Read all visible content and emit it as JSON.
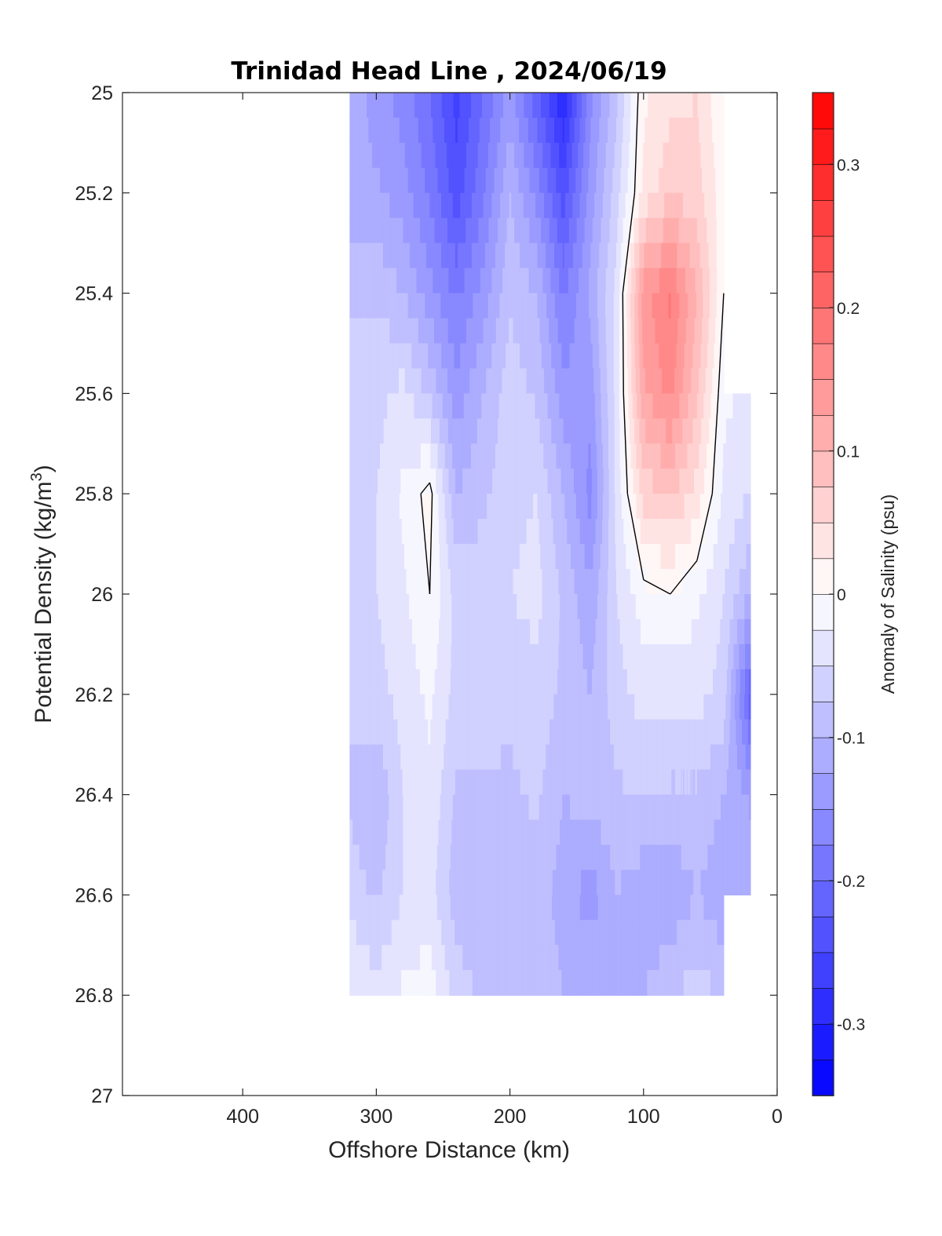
{
  "chart_data": {
    "type": "heatmap",
    "title": "Trinidad Head Line , 2024/06/19",
    "xlabel": "Offshore Distance (km)",
    "ylabel": "Potential Density (kg/m",
    "ylabel_sup": "3",
    "ylabel_close": ")",
    "xlim": [
      490,
      0
    ],
    "x_reversed": true,
    "ylim": [
      25,
      27
    ],
    "y_reversed": true,
    "x_ticks": [
      400,
      300,
      200,
      100,
      0
    ],
    "x_tick_labels": [
      "400",
      "300",
      "200",
      "100",
      "0"
    ],
    "y_ticks": [
      25,
      25.2,
      25.4,
      25.6,
      25.8,
      26,
      26.2,
      26.4,
      26.6,
      26.8,
      27
    ],
    "y_tick_labels": [
      "25",
      "25.2",
      "25.4",
      "25.6",
      "25.8",
      "26",
      "26.2",
      "26.4",
      "26.6",
      "26.8",
      "27"
    ],
    "colorbar": {
      "label": "Anomaly of Salinity (psu)",
      "clim": [
        -0.35,
        0.35
      ],
      "level_step": 0.025,
      "ticks": [
        0.3,
        0.2,
        0.1,
        0,
        -0.1,
        -0.2,
        -0.3
      ],
      "tick_labels": [
        "0.3",
        "0.2",
        "0.1",
        "0",
        "-0.1",
        "-0.2",
        "-0.3"
      ],
      "colormap": "blue-white-red",
      "low_color": "#0000ff",
      "mid_color": "#ffffff",
      "high_color": "#ff0000"
    },
    "distances_km": [
      320,
      300,
      280,
      260,
      240,
      220,
      200,
      180,
      160,
      140,
      120,
      100,
      80,
      60,
      40,
      20
    ],
    "densities": [
      25.0,
      25.2,
      25.4,
      25.6,
      25.8,
      26.0,
      26.2,
      26.4,
      26.6,
      26.8
    ],
    "anomaly_psu": [
      [
        -0.1,
        -0.14,
        -0.16,
        -0.2,
        -0.26,
        -0.2,
        -0.14,
        -0.22,
        -0.3,
        -0.16,
        -0.08,
        0.02,
        0.04,
        0.05,
        0.0,
        null
      ],
      [
        -0.12,
        -0.12,
        -0.14,
        -0.18,
        -0.24,
        -0.18,
        -0.1,
        -0.16,
        -0.24,
        -0.14,
        -0.06,
        0.03,
        0.07,
        0.06,
        0.01,
        null
      ],
      [
        -0.08,
        -0.08,
        -0.1,
        -0.14,
        -0.18,
        -0.14,
        -0.08,
        -0.1,
        -0.18,
        -0.12,
        -0.04,
        0.14,
        0.18,
        0.1,
        0.0,
        null
      ],
      [
        -0.06,
        -0.06,
        -0.04,
        -0.08,
        -0.14,
        -0.1,
        -0.06,
        -0.08,
        -0.14,
        -0.14,
        -0.04,
        0.12,
        0.16,
        0.08,
        -0.02,
        -0.03
      ],
      [
        -0.06,
        -0.05,
        -0.02,
        0.01,
        -0.1,
        -0.08,
        -0.06,
        -0.05,
        -0.1,
        -0.16,
        -0.04,
        0.06,
        0.08,
        0.04,
        -0.03,
        -0.05
      ],
      [
        -0.06,
        -0.05,
        -0.03,
        0.0,
        -0.06,
        -0.06,
        -0.05,
        -0.04,
        -0.08,
        -0.12,
        -0.05,
        -0.01,
        0.0,
        -0.02,
        -0.05,
        -0.1
      ],
      [
        -0.07,
        -0.06,
        -0.04,
        -0.02,
        -0.06,
        -0.06,
        -0.07,
        -0.06,
        -0.08,
        -0.1,
        -0.06,
        -0.04,
        -0.04,
        -0.04,
        -0.06,
        -0.22
      ],
      [
        -0.08,
        -0.1,
        -0.05,
        -0.03,
        -0.08,
        -0.08,
        -0.08,
        -0.07,
        -0.1,
        -0.09,
        -0.08,
        -0.07,
        -0.08,
        -0.08,
        -0.1,
        -0.13
      ],
      [
        -0.06,
        -0.08,
        -0.05,
        -0.04,
        -0.09,
        -0.1,
        -0.09,
        -0.09,
        -0.11,
        -0.14,
        -0.1,
        -0.12,
        -0.12,
        -0.1,
        -0.12,
        -0.1
      ],
      [
        -0.02,
        -0.04,
        -0.02,
        -0.01,
        -0.06,
        -0.08,
        -0.08,
        -0.08,
        -0.1,
        -0.1,
        -0.1,
        -0.1,
        -0.08,
        -0.06,
        -0.08,
        null
      ]
    ]
  }
}
